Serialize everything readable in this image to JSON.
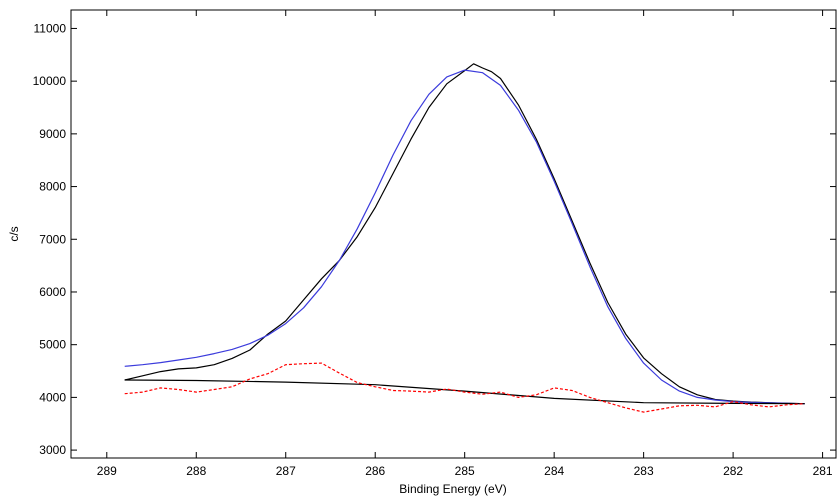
{
  "chart_data": {
    "type": "line",
    "title": "",
    "xlabel": "Binding Energy (eV)",
    "ylabel": "c/s",
    "xlim": [
      289.4,
      280.85
    ],
    "ylim": [
      2850,
      11350
    ],
    "x_reversed": true,
    "grid": false,
    "legend": "none",
    "xticks": [
      289,
      288,
      287,
      286,
      285,
      284,
      283,
      282,
      281
    ],
    "yticks": [
      3000,
      4000,
      5000,
      6000,
      7000,
      8000,
      9000,
      10000,
      11000
    ],
    "colors": {
      "measured": "#000000",
      "envelope": "#3b3bdc",
      "residual": "#ff0000",
      "background": "#000000"
    },
    "series": [
      {
        "key": "measured",
        "style": "solid",
        "x": [
          288.8,
          288.6,
          288.4,
          288.2,
          288.0,
          287.8,
          287.6,
          287.4,
          287.2,
          287.0,
          286.8,
          286.6,
          286.4,
          286.2,
          286.0,
          285.8,
          285.6,
          285.4,
          285.2,
          285.0,
          284.9,
          284.8,
          284.7,
          284.6,
          284.4,
          284.2,
          284.0,
          283.8,
          283.6,
          283.4,
          283.2,
          283.0,
          282.8,
          282.6,
          282.4,
          282.2,
          282.0,
          281.8,
          281.6,
          281.4,
          281.2
        ],
        "y": [
          4330,
          4410,
          4490,
          4540,
          4560,
          4620,
          4740,
          4900,
          5200,
          5450,
          5850,
          6250,
          6600,
          7050,
          7600,
          8250,
          8900,
          9500,
          9950,
          10200,
          10330,
          10250,
          10180,
          10050,
          9550,
          8900,
          8150,
          7350,
          6550,
          5800,
          5200,
          4750,
          4450,
          4200,
          4050,
          3960,
          3930,
          3910,
          3900,
          3890,
          3880
        ]
      },
      {
        "key": "envelope",
        "style": "solid",
        "x": [
          288.8,
          288.6,
          288.4,
          288.2,
          288.0,
          287.8,
          287.6,
          287.4,
          287.2,
          287.0,
          286.8,
          286.6,
          286.4,
          286.2,
          286.0,
          285.8,
          285.6,
          285.4,
          285.2,
          285.0,
          284.8,
          284.6,
          284.4,
          284.2,
          284.0,
          283.8,
          283.6,
          283.4,
          283.2,
          283.0,
          282.8,
          282.6,
          282.4,
          282.2,
          282.0,
          281.8,
          281.6,
          281.4,
          281.2
        ],
        "y": [
          4590,
          4620,
          4660,
          4710,
          4760,
          4830,
          4910,
          5020,
          5180,
          5400,
          5700,
          6100,
          6600,
          7200,
          7880,
          8600,
          9250,
          9750,
          10080,
          10210,
          10160,
          9920,
          9450,
          8850,
          8100,
          7300,
          6480,
          5720,
          5120,
          4650,
          4330,
          4120,
          4000,
          3950,
          3920,
          3905,
          3895,
          3888,
          3880
        ]
      },
      {
        "key": "background",
        "style": "solid",
        "x": [
          288.8,
          288.0,
          287.0,
          286.0,
          285.0,
          284.0,
          283.0,
          282.0,
          281.2
        ],
        "y": [
          4330,
          4320,
          4290,
          4240,
          4120,
          3980,
          3900,
          3885,
          3880
        ]
      },
      {
        "key": "residual",
        "style": "dashed",
        "x": [
          288.8,
          288.6,
          288.4,
          288.2,
          288.0,
          287.8,
          287.6,
          287.4,
          287.2,
          287.0,
          286.8,
          286.6,
          286.4,
          286.2,
          286.0,
          285.8,
          285.6,
          285.4,
          285.2,
          285.0,
          284.8,
          284.6,
          284.4,
          284.2,
          284.0,
          283.8,
          283.6,
          283.4,
          283.2,
          283.0,
          282.8,
          282.6,
          282.4,
          282.2,
          282.0,
          281.8,
          281.6,
          281.4,
          281.2
        ],
        "y": [
          4070,
          4100,
          4180,
          4150,
          4100,
          4150,
          4200,
          4350,
          4450,
          4620,
          4640,
          4650,
          4460,
          4280,
          4200,
          4130,
          4120,
          4100,
          4160,
          4100,
          4060,
          4100,
          4000,
          4050,
          4180,
          4130,
          4000,
          3900,
          3800,
          3720,
          3780,
          3840,
          3850,
          3820,
          3920,
          3860,
          3820,
          3860,
          3880
        ]
      }
    ]
  }
}
